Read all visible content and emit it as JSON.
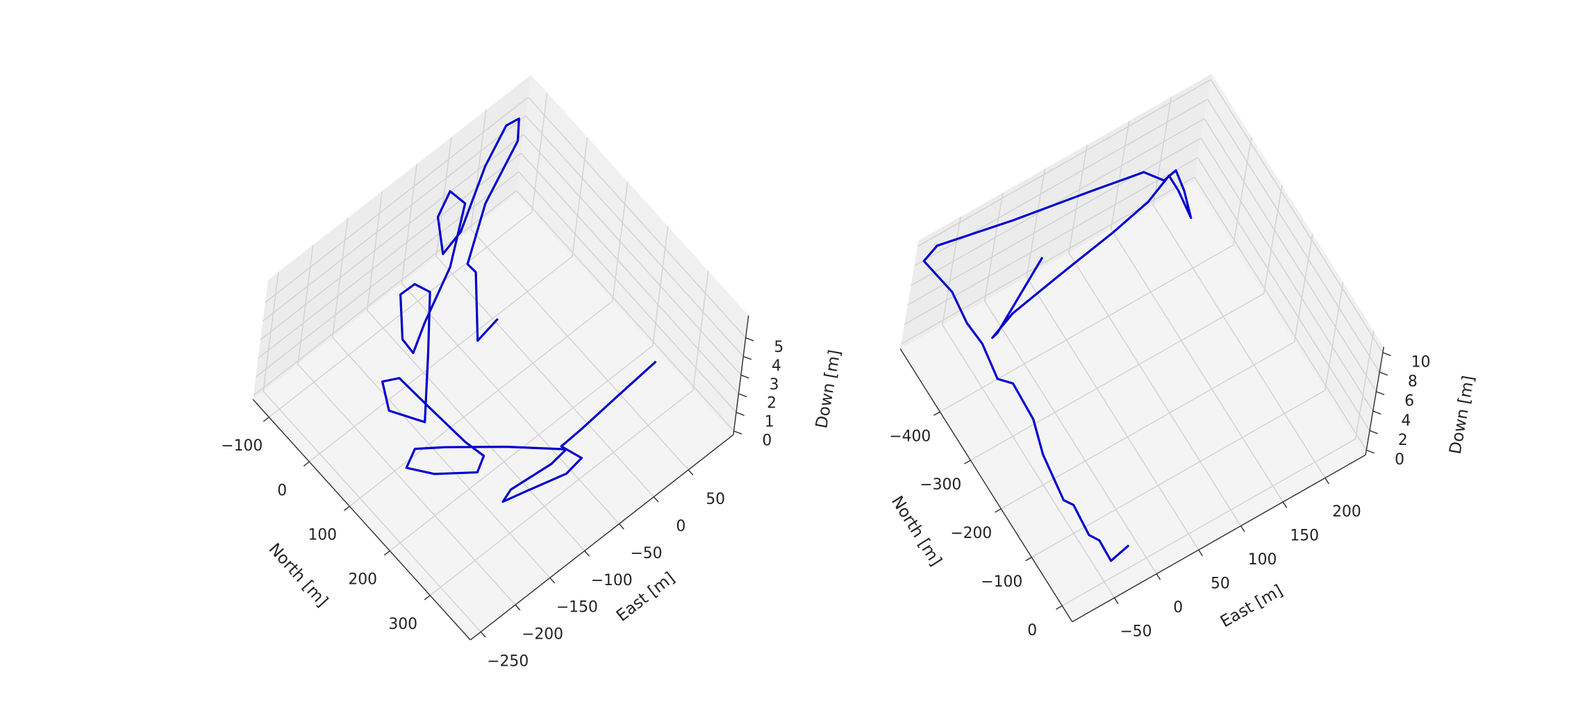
{
  "chart_data": [
    {
      "type": "line3d",
      "xlabel": "North [m]",
      "ylabel": "East [m]",
      "zlabel": "Down [m]",
      "xlim": [
        -140,
        400
      ],
      "ylim": [
        -265,
        115
      ],
      "zlim": [
        -0.2,
        6.2
      ],
      "xticks": [
        {
          "value": -100,
          "label": "−100"
        },
        0,
        100,
        200,
        300
      ],
      "yticks": [
        {
          "value": -250,
          "label": "−250"
        },
        {
          "value": -200,
          "label": "−200"
        },
        {
          "value": -150,
          "label": "−150"
        },
        {
          "value": -100,
          "label": "−100"
        },
        {
          "value": -50,
          "label": "−50"
        },
        0,
        50
      ],
      "zticks": [
        0,
        1,
        2,
        3,
        4,
        5
      ],
      "grid": true,
      "series": [
        {
          "color": "#0000cc",
          "x": [
            286,
            290,
            294,
            296,
            330,
            335,
            319,
            309,
            301,
            309,
            305,
            240,
            178,
            149,
            163,
            200,
            244,
            229,
            192,
            111,
            40,
            27,
            70,
            124,
            36,
            -42,
            -68,
            -69,
            -10,
            21,
            -7,
            -54,
            -54,
            -83,
            -62,
            -8,
            -19,
            -80,
            -112,
            -108,
            -80,
            -33,
            -40,
            -21,
            71,
            63
          ],
          "y": [
            60,
            2,
            -51,
            -82,
            -72,
            -97,
            -146,
            -174,
            -158,
            -104,
            -80,
            -129,
            -181,
            -208,
            -228,
            -209,
            -173,
            -155,
            -160,
            -164,
            -167,
            -184,
            -199,
            -179,
            -123,
            -75,
            -82,
            -102,
            -133,
            -136,
            -103,
            -39,
            -28,
            -33,
            -63,
            -87,
            -55,
            16,
            65,
            81,
            63,
            -11,
            -22,
            -21,
            -72,
            -38
          ],
          "z": [
            2.6,
            2.5,
            2.4,
            2.4,
            2.3,
            2.3,
            2.4,
            2.4,
            2.4,
            2.4,
            2.4,
            2.4,
            2.4,
            2.4,
            2.3,
            2.3,
            2.4,
            2.4,
            2.4,
            2.4,
            2.4,
            2.4,
            2.3,
            2.4,
            2.4,
            2.4,
            2.4,
            2.4,
            2.3,
            2.4,
            2.4,
            2.4,
            5.5,
            5.6,
            5.6,
            5.6,
            5.6,
            5.6,
            5.6,
            5.6,
            5.6,
            5.5,
            2.4,
            2.4,
            2.4,
            2.4
          ]
        }
      ]
    },
    {
      "type": "line3d",
      "xlabel": "North [m]",
      "ylabel": "East [m]",
      "zlabel": "Down [m]",
      "xlim": [
        -530,
        33
      ],
      "ylim": [
        -100,
        248
      ],
      "zlim": [
        -0.5,
        10.6
      ],
      "xticks": [
        {
          "value": -400,
          "label": "−400"
        },
        {
          "value": -300,
          "label": "−300"
        },
        {
          "value": -200,
          "label": "−200"
        },
        {
          "value": -100,
          "label": "−100"
        },
        0
      ],
      "yticks": [
        {
          "value": -50,
          "label": "−50"
        },
        0,
        50,
        100,
        150,
        200
      ],
      "zticks": [
        0,
        2,
        4,
        6,
        8,
        10
      ],
      "grid": true,
      "series": [
        {
          "color": "#0000cc",
          "x": [
            10,
            18,
            -23,
            -40,
            -99,
            -115,
            -202,
            -264,
            -336,
            -356,
            -423,
            -467,
            -482,
            -509,
            -521,
            -494,
            -470,
            -454,
            -424,
            -429,
            -391,
            -344,
            -396,
            -427,
            -420,
            -419,
            -424,
            -428,
            -415,
            -418,
            -494
          ],
          "y": [
            -31,
            -55,
            -54,
            -60,
            -57,
            -63,
            -56,
            -45,
            -43,
            -54,
            -48,
            -50,
            -69,
            -99,
            -79,
            1,
            88,
            142,
            155,
            171,
            167,
            158,
            162,
            162,
            137,
            98,
            43,
            -12,
            -40,
            -33,
            48
          ],
          "z": [
            2.8,
            2.8,
            2.8,
            2.8,
            2.8,
            2.8,
            2.8,
            2.8,
            2.8,
            2.8,
            2.8,
            2.8,
            6.2,
            9.5,
            9.5,
            9.5,
            9.5,
            9.5,
            9.5,
            9.5,
            9.5,
            9.5,
            9.5,
            9.5,
            8.4,
            7.3,
            5.6,
            3.9,
            3.4,
            3.4,
            3.4
          ]
        }
      ]
    }
  ]
}
